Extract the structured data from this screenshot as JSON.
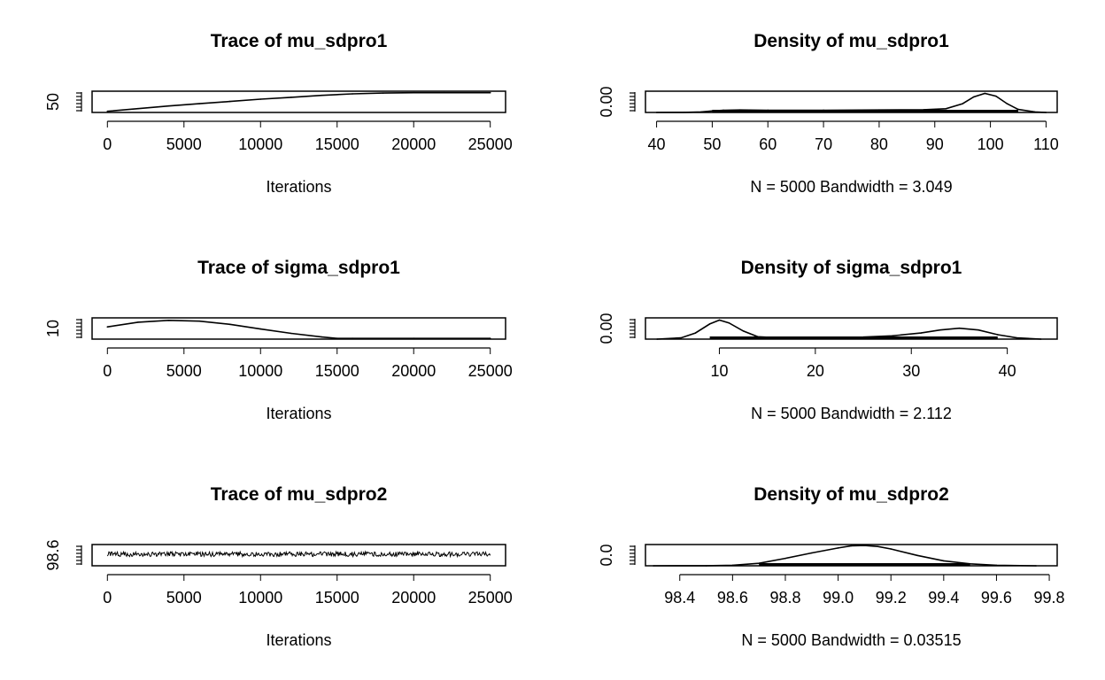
{
  "chart_data": [
    {
      "type": "line",
      "title": "Trace of mu_sdpro1",
      "xlabel": "Iterations",
      "ylabel": "",
      "xlim": [
        -1000,
        26000
      ],
      "xticks": [
        "0",
        "5000",
        "10000",
        "15000",
        "20000",
        "25000"
      ],
      "yticks": [
        "50"
      ],
      "ylim": [
        47,
        103
      ],
      "series": [
        {
          "x": [
            0,
            2000,
            4000,
            6000,
            8000,
            10000,
            12000,
            14000,
            16000,
            18000,
            20000,
            22000,
            25000
          ],
          "y": [
            50,
            57,
            64,
            70,
            76,
            82,
            87,
            92,
            96,
            98,
            99,
            99,
            99
          ]
        }
      ]
    },
    {
      "type": "line",
      "title": "Density of mu_sdpro1",
      "xlabel": "N = 5000   Bandwidth = 3.049",
      "ylabel": "",
      "xlim": [
        38,
        112
      ],
      "xticks": [
        "40",
        "50",
        "60",
        "70",
        "80",
        "90",
        "100",
        "110"
      ],
      "yticks": [
        "0.00"
      ],
      "ylim": [
        0,
        0.085
      ],
      "series": [
        {
          "x": [
            40,
            45,
            48,
            50,
            52,
            55,
            60,
            70,
            80,
            88,
            92,
            95,
            97,
            99,
            101,
            103,
            105,
            108,
            110
          ],
          "y": [
            0.0,
            0.0005,
            0.002,
            0.006,
            0.009,
            0.01,
            0.009,
            0.009,
            0.01,
            0.011,
            0.015,
            0.035,
            0.062,
            0.076,
            0.065,
            0.035,
            0.012,
            0.002,
            0.0
          ]
        }
      ]
    },
    {
      "type": "line",
      "title": "Trace of sigma_sdpro1",
      "xlabel": "Iterations",
      "ylabel": "",
      "xlim": [
        -1000,
        26000
      ],
      "xticks": [
        "0",
        "5000",
        "10000",
        "15000",
        "20000",
        "25000"
      ],
      "yticks": [
        "10"
      ],
      "ylim": [
        9,
        38.5
      ],
      "series": [
        {
          "x": [
            0,
            2000,
            4000,
            6000,
            8000,
            10000,
            12000,
            14000,
            15000,
            16000,
            20000,
            25000
          ],
          "y": [
            26,
            32.5,
            35,
            34,
            29.5,
            23,
            17,
            12,
            10,
            10,
            10,
            10
          ]
        }
      ]
    },
    {
      "type": "line",
      "title": "Density of sigma_sdpro1",
      "xlabel": "N = 5000   Bandwidth = 2.112",
      "ylabel": "",
      "xlim": [
        2.3,
        45.2
      ],
      "xticks": [
        "10",
        "20",
        "30",
        "40"
      ],
      "yticks": [
        "0.00"
      ],
      "ylim": [
        0,
        0.105
      ],
      "series": [
        {
          "x": [
            3.5,
            6,
            7.5,
            9,
            10,
            11,
            12.5,
            14,
            16,
            20,
            25,
            28,
            31,
            33,
            35,
            37,
            39,
            41,
            43.5
          ],
          "y": [
            0.0,
            0.006,
            0.03,
            0.075,
            0.094,
            0.08,
            0.04,
            0.012,
            0.007,
            0.008,
            0.01,
            0.016,
            0.03,
            0.045,
            0.054,
            0.045,
            0.022,
            0.006,
            0.0
          ]
        }
      ]
    },
    {
      "type": "line",
      "title": "Trace of mu_sdpro2",
      "xlabel": "Iterations",
      "ylabel": "",
      "xlim": [
        -1000,
        26000
      ],
      "xticks": [
        "0",
        "5000",
        "10000",
        "15000",
        "20000",
        "25000"
      ],
      "yticks": [
        "98.6"
      ],
      "ylim": [
        98.45,
        99.6
      ],
      "series": [
        {
          "type": "noise",
          "x_start": 0,
          "x_end": 25000,
          "mean": 99.08,
          "spread": 0.13,
          "points": 500
        }
      ]
    },
    {
      "type": "line",
      "title": "Density of mu_sdpro2",
      "xlabel": "N = 5000   Bandwidth = 0.03515",
      "ylabel": "",
      "xlim": [
        98.27,
        99.83
      ],
      "xticks": [
        "98.4",
        "98.6",
        "98.8",
        "99.0",
        "99.2",
        "99.4",
        "99.6",
        "99.8"
      ],
      "yticks": [
        "0.0"
      ],
      "ylim": [
        0,
        4.3
      ],
      "series": [
        {
          "x": [
            98.3,
            98.5,
            98.6,
            98.7,
            98.8,
            98.9,
            99.0,
            99.05,
            99.1,
            99.15,
            99.2,
            99.3,
            99.4,
            99.5,
            99.6,
            99.75
          ],
          "y": [
            0.0,
            0.02,
            0.1,
            0.5,
            1.5,
            2.6,
            3.6,
            4.05,
            4.1,
            3.9,
            3.4,
            2.1,
            1.0,
            0.4,
            0.1,
            0.0
          ]
        }
      ]
    }
  ]
}
